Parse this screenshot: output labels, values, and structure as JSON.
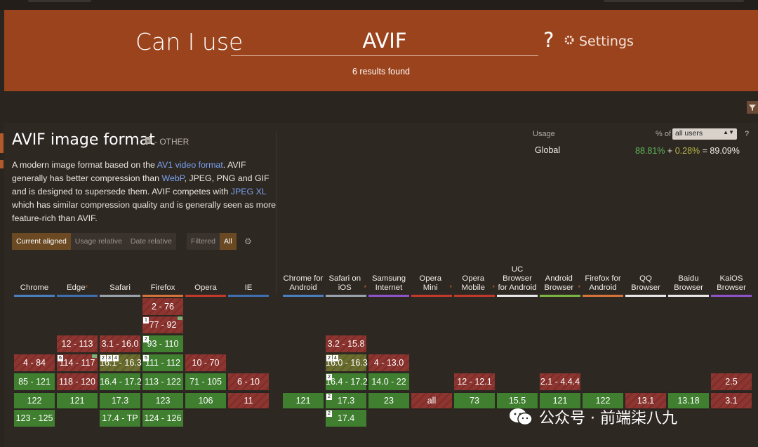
{
  "header": {
    "title": "Can I use",
    "search_value": "AVIF",
    "help": "?",
    "settings_label": "Settings",
    "results": "6 results found"
  },
  "feature": {
    "title": "AVIF image format",
    "category": "- OTHER",
    "description": {
      "t1": "A modern image format based on the ",
      "l1": "AV1 video format",
      "t2": ". AVIF generally has better compression than ",
      "l2": "WebP",
      "t3": ", JPEG, PNG and GIF and is designed to supersede them. AVIF competes with ",
      "l3": "JPEG XL",
      "t4": " which has similar compression quality and is generally seen as more feature-rich than AVIF."
    }
  },
  "usage": {
    "label": "Usage",
    "pct_of": "% of",
    "scope": "all users",
    "help": "?",
    "region": "Global",
    "supported": "88.81%",
    "plus": "+",
    "partial": "0.28%",
    "equals": "=",
    "total": "89.09%"
  },
  "toggles": {
    "current_aligned": "Current aligned",
    "usage_relative": "Usage relative",
    "date_relative": "Date relative",
    "filtered": "Filtered",
    "all": "All"
  },
  "browsers": [
    {
      "name": "Chrome",
      "asterisk": false,
      "color": "#4a7ebf"
    },
    {
      "name": "Edge",
      "asterisk": true,
      "color": "#3f6fb0"
    },
    {
      "name": "Safari",
      "asterisk": false,
      "color": "#9aa3ad"
    },
    {
      "name": "Firefox",
      "asterisk": false,
      "color": "#d4743b"
    },
    {
      "name": "Opera",
      "asterisk": false,
      "color": "#c0392b"
    },
    {
      "name": "IE",
      "asterisk": false,
      "color": "#3f6fb0"
    },
    {
      "name": "Chrome for Android",
      "asterisk": false,
      "color": "#4a7ebf"
    },
    {
      "name": "Safari on iOS",
      "asterisk": true,
      "color": "#9aa3ad"
    },
    {
      "name": "Samsung Internet",
      "asterisk": false,
      "color": "#8e53c9"
    },
    {
      "name": "Opera Mini",
      "asterisk": true,
      "color": "#c0392b"
    },
    {
      "name": "Opera Mobile",
      "asterisk": true,
      "color": "#c0392b"
    },
    {
      "name": "UC Browser for Android",
      "asterisk": false,
      "color": "#e8e8e8"
    },
    {
      "name": "Android Browser",
      "asterisk": true,
      "color": "#7cb342"
    },
    {
      "name": "Firefox for Android",
      "asterisk": false,
      "color": "#d4743b"
    },
    {
      "name": "QQ Browser",
      "asterisk": false,
      "color": "#e8e8e8"
    },
    {
      "name": "Baidu Browser",
      "asterisk": false,
      "color": "#e8e8e8"
    },
    {
      "name": "KaiOS Browser",
      "asterisk": false,
      "color": "#8e53c9"
    }
  ],
  "support_colors": {
    "supported": "#3f7f2f",
    "unsupported": "#8d3530",
    "partial": "#6a6d2e"
  },
  "cells": [
    {
      "col": 3,
      "row": 0,
      "v": "2 - 76",
      "s": "n"
    },
    {
      "col": 3,
      "row": 1,
      "v": "77 - 92",
      "s": "n",
      "note": "1",
      "flag": true
    },
    {
      "col": 1,
      "row": 2,
      "v": "12 - 113",
      "s": "n"
    },
    {
      "col": 2,
      "row": 2,
      "v": "3.1 - 16.0",
      "s": "n"
    },
    {
      "col": 3,
      "row": 2,
      "v": "93 - 110",
      "s": "y",
      "note": "2"
    },
    {
      "col": 7,
      "row": 2,
      "v": "3.2 - 15.8",
      "s": "n"
    },
    {
      "col": 0,
      "row": 3,
      "v": "4 - 84",
      "s": "n"
    },
    {
      "col": 1,
      "row": 3,
      "v": "114 - 117",
      "s": "n",
      "note": "6",
      "flag": true
    },
    {
      "col": 2,
      "row": 3,
      "v": "16.1 - 16.3",
      "s": "p",
      "note": "2 3 4"
    },
    {
      "col": 3,
      "row": 3,
      "v": "111 - 112",
      "s": "y",
      "note": "5"
    },
    {
      "col": 4,
      "row": 3,
      "v": "10 - 70",
      "s": "n"
    },
    {
      "col": 7,
      "row": 3,
      "v": "16.0 - 16.3",
      "s": "p",
      "note": "2 4"
    },
    {
      "col": 8,
      "row": 3,
      "v": "4 - 13.0",
      "s": "n"
    },
    {
      "col": 0,
      "row": 4,
      "v": "85 - 121",
      "s": "y"
    },
    {
      "col": 1,
      "row": 4,
      "v": "118 - 120",
      "s": "n"
    },
    {
      "col": 2,
      "row": 4,
      "v": "16.4 - 17.2",
      "s": "y"
    },
    {
      "col": 3,
      "row": 4,
      "v": "113 - 122",
      "s": "y"
    },
    {
      "col": 4,
      "row": 4,
      "v": "71 - 105",
      "s": "y"
    },
    {
      "col": 5,
      "row": 4,
      "v": "6 - 10",
      "s": "n"
    },
    {
      "col": 7,
      "row": 4,
      "v": "16.4 - 17.2",
      "s": "y",
      "note": "2"
    },
    {
      "col": 8,
      "row": 4,
      "v": "14.0 - 22",
      "s": "y"
    },
    {
      "col": 10,
      "row": 4,
      "v": "12 - 12.1",
      "s": "n"
    },
    {
      "col": 12,
      "row": 4,
      "v": "2.1 - 4.4.4",
      "s": "n"
    },
    {
      "col": 16,
      "row": 4,
      "v": "2.5",
      "s": "n"
    },
    {
      "col": 0,
      "row": 5,
      "v": "122",
      "s": "y",
      "cur": true
    },
    {
      "col": 1,
      "row": 5,
      "v": "121",
      "s": "y",
      "cur": true
    },
    {
      "col": 2,
      "row": 5,
      "v": "17.3",
      "s": "y",
      "cur": true
    },
    {
      "col": 3,
      "row": 5,
      "v": "123",
      "s": "y",
      "cur": true
    },
    {
      "col": 4,
      "row": 5,
      "v": "106",
      "s": "y",
      "cur": true
    },
    {
      "col": 5,
      "row": 5,
      "v": "11",
      "s": "n",
      "cur": true
    },
    {
      "col": 6,
      "row": 5,
      "v": "121",
      "s": "y",
      "cur": true
    },
    {
      "col": 7,
      "row": 5,
      "v": "17.3",
      "s": "y",
      "cur": true,
      "note": "2"
    },
    {
      "col": 8,
      "row": 5,
      "v": "23",
      "s": "y",
      "cur": true
    },
    {
      "col": 9,
      "row": 5,
      "v": "all",
      "s": "n",
      "cur": true
    },
    {
      "col": 10,
      "row": 5,
      "v": "73",
      "s": "y",
      "cur": true
    },
    {
      "col": 11,
      "row": 5,
      "v": "15.5",
      "s": "y",
      "cur": true
    },
    {
      "col": 12,
      "row": 5,
      "v": "121",
      "s": "y",
      "cur": true
    },
    {
      "col": 13,
      "row": 5,
      "v": "122",
      "s": "y",
      "cur": true
    },
    {
      "col": 14,
      "row": 5,
      "v": "13.1",
      "s": "n",
      "cur": true
    },
    {
      "col": 15,
      "row": 5,
      "v": "13.18",
      "s": "y",
      "cur": true
    },
    {
      "col": 16,
      "row": 5,
      "v": "3.1",
      "s": "n",
      "cur": true
    },
    {
      "col": 0,
      "row": 6,
      "v": "123 - 125",
      "s": "y"
    },
    {
      "col": 2,
      "row": 6,
      "v": "17.4 - TP",
      "s": "y"
    },
    {
      "col": 3,
      "row": 6,
      "v": "124 - 126",
      "s": "y"
    },
    {
      "col": 7,
      "row": 6,
      "v": "17.4",
      "s": "y",
      "note": "2"
    }
  ],
  "watermark": "公众号 · 前端柒八九"
}
